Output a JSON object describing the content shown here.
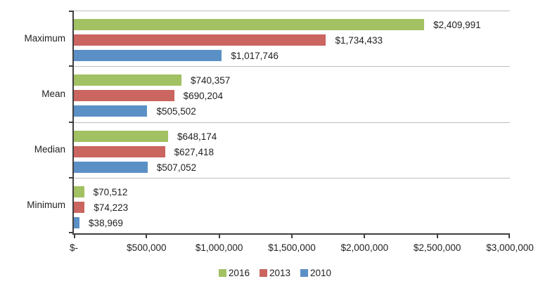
{
  "chart_data": {
    "type": "bar",
    "orientation": "horizontal",
    "categories": [
      "Maximum",
      "Mean",
      "Median",
      "Minimum"
    ],
    "series": [
      {
        "name": "2016",
        "color": "#a2c162",
        "values": [
          2409991,
          740357,
          648174,
          70512
        ],
        "labels": [
          "$2,409,991",
          "$740,357",
          "$648,174",
          "$70,512"
        ]
      },
      {
        "name": "2013",
        "color": "#ca655f",
        "values": [
          1734433,
          690204,
          627418,
          74223
        ],
        "labels": [
          "$1,734,433",
          "$690,204",
          "$627,418",
          "$74,223"
        ]
      },
      {
        "name": "2010",
        "color": "#5b90c6",
        "values": [
          1017746,
          505502,
          507052,
          38969
        ],
        "labels": [
          "$1,017,746",
          "$505,502",
          "$507,052",
          "$38,969"
        ]
      }
    ],
    "xlim": [
      0,
      3000000
    ],
    "x_ticks": [
      "$-",
      "$500,000",
      "$1,000,000",
      "$1,500,000",
      "$2,000,000",
      "$2,500,000",
      "$3,000,000"
    ],
    "legend": {
      "position": "bottom",
      "entries": [
        "2016",
        "2013",
        "2010"
      ]
    },
    "gridlines": "category-separators"
  },
  "colors": {
    "axis": "#3f3f3f",
    "gridline": "#bdbdbd",
    "text": "#1f1f1f",
    "background": "#ffffff"
  }
}
